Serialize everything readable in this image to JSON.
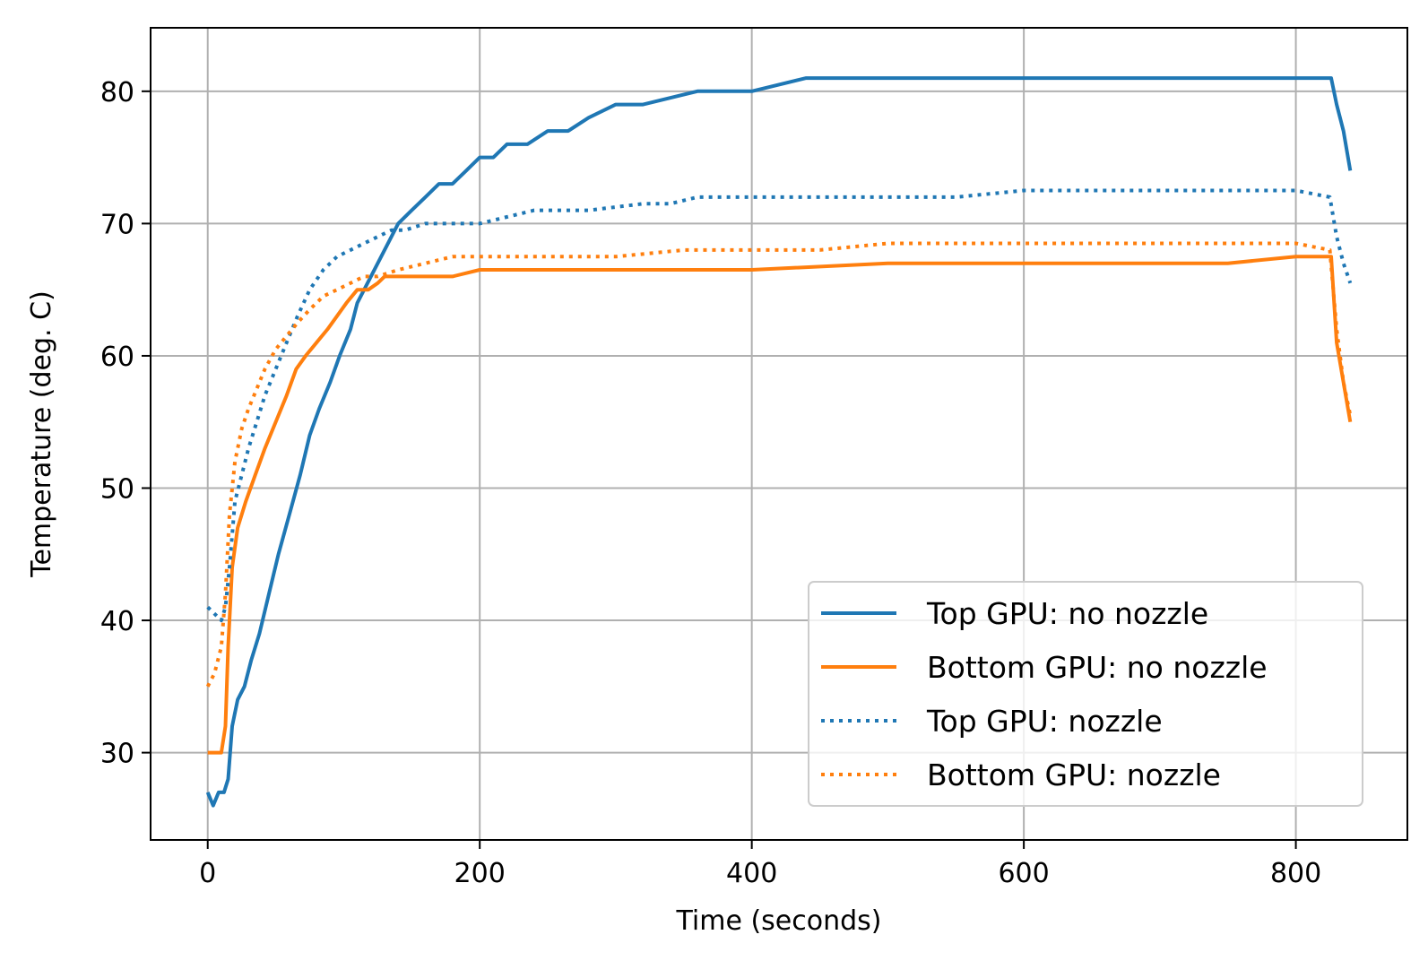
{
  "chart_data": {
    "type": "line",
    "title": "",
    "xlabel": "Time (seconds)",
    "ylabel": "Temperature (deg. C)",
    "xlim": [
      -42,
      882
    ],
    "ylim": [
      23.4,
      84.8
    ],
    "xticks": [
      0,
      200,
      400,
      600,
      800
    ],
    "yticks": [
      30,
      40,
      50,
      60,
      70,
      80
    ],
    "grid": true,
    "legend_position": "lower-right",
    "series": [
      {
        "name": "Top GPU: no nozzle",
        "color": "#1f77b4",
        "style": "solid",
        "x": [
          0,
          4,
          8,
          12,
          15,
          18,
          22,
          27,
          32,
          38,
          45,
          52,
          60,
          68,
          75,
          82,
          90,
          97,
          105,
          110,
          115,
          120,
          125,
          130,
          140,
          150,
          160,
          170,
          180,
          190,
          200,
          210,
          220,
          235,
          250,
          265,
          280,
          300,
          320,
          340,
          360,
          380,
          400,
          420,
          440,
          460,
          500,
          540,
          560,
          600,
          650,
          700,
          750,
          800,
          820,
          826,
          830,
          835,
          840
        ],
        "y": [
          27,
          26,
          27,
          27,
          28,
          32,
          34,
          35,
          37,
          39,
          42,
          45,
          48,
          51,
          54,
          56,
          58,
          60,
          62,
          64,
          65,
          66,
          67,
          68,
          70,
          71,
          72,
          73,
          73,
          74,
          75,
          75,
          76,
          76,
          77,
          77,
          78,
          79,
          79,
          79.5,
          80,
          80,
          80,
          80.5,
          81,
          81,
          81,
          81,
          81,
          81,
          81,
          81,
          81,
          81,
          81,
          81,
          79,
          77,
          74
        ]
      },
      {
        "name": "Bottom GPU: no nozzle",
        "color": "#ff7f0e",
        "style": "solid",
        "x": [
          0,
          5,
          10,
          13,
          15,
          18,
          22,
          28,
          35,
          42,
          50,
          58,
          65,
          72,
          80,
          88,
          95,
          102,
          110,
          118,
          125,
          130,
          140,
          150,
          160,
          170,
          180,
          200,
          300,
          400,
          500,
          550,
          600,
          650,
          700,
          750,
          800,
          820,
          826,
          830,
          835,
          840
        ],
        "y": [
          30,
          30,
          30,
          32,
          38,
          44,
          47,
          49,
          51,
          53,
          55,
          57,
          59,
          60,
          61,
          62,
          63,
          64,
          65,
          65,
          65.5,
          66,
          66,
          66,
          66,
          66,
          66,
          66.5,
          66.5,
          66.5,
          67,
          67,
          67,
          67,
          67,
          67,
          67.5,
          67.5,
          67.5,
          61,
          58,
          55
        ]
      },
      {
        "name": "Top GPU: nozzle",
        "color": "#1f77b4",
        "style": "dotted",
        "x": [
          0,
          5,
          10,
          13,
          16,
          20,
          25,
          30,
          36,
          42,
          50,
          58,
          66,
          75,
          85,
          95,
          105,
          115,
          125,
          135,
          145,
          160,
          180,
          200,
          220,
          240,
          280,
          320,
          340,
          360,
          400,
          450,
          500,
          550,
          600,
          650,
          700,
          750,
          800,
          825,
          830,
          835,
          840
        ],
        "y": [
          41,
          40.5,
          40,
          41,
          44,
          49,
          51,
          53,
          55,
          57,
          59,
          61,
          63,
          65,
          66.5,
          67.5,
          68,
          68.5,
          69,
          69.5,
          69.5,
          70,
          70,
          70,
          70.5,
          71,
          71,
          71.5,
          71.5,
          72,
          72,
          72,
          72,
          72,
          72.5,
          72.5,
          72.5,
          72.5,
          72.5,
          72,
          69,
          67,
          65.5
        ]
      },
      {
        "name": "Bottom GPU: nozzle",
        "color": "#ff7f0e",
        "style": "dotted",
        "x": [
          0,
          5,
          10,
          13,
          16,
          20,
          25,
          30,
          36,
          42,
          50,
          58,
          66,
          75,
          85,
          95,
          105,
          115,
          125,
          140,
          160,
          180,
          200,
          250,
          300,
          350,
          400,
          450,
          500,
          550,
          600,
          650,
          700,
          750,
          800,
          825,
          830,
          835,
          840
        ],
        "y": [
          35,
          36,
          38,
          42,
          48,
          52,
          54.5,
          56,
          57.5,
          59,
          60.5,
          61.5,
          62.5,
          63.5,
          64.5,
          65,
          65.5,
          66,
          66,
          66.5,
          67,
          67.5,
          67.5,
          67.5,
          67.5,
          68,
          68,
          68,
          68.5,
          68.5,
          68.5,
          68.5,
          68.5,
          68.5,
          68.5,
          68,
          62,
          58,
          55.5
        ]
      }
    ]
  }
}
